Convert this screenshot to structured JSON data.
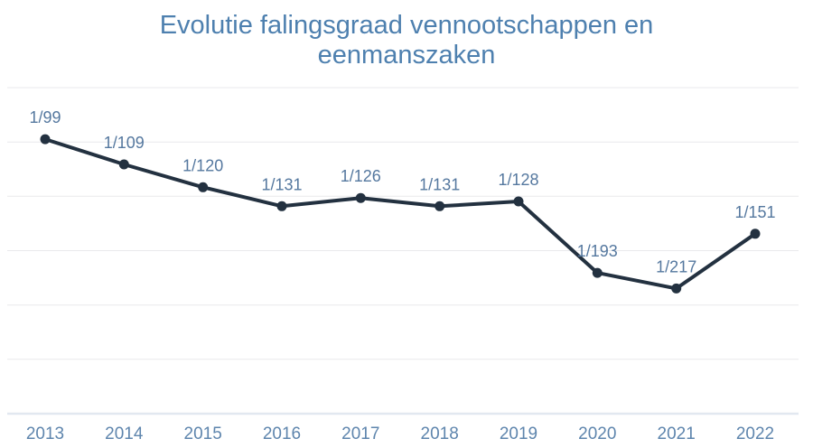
{
  "page": {
    "background": "#ffffff"
  },
  "chart": {
    "title": "Evolutie falingsgraad vennootschappen en eenmanszaken"
  },
  "chart_data": {
    "type": "line",
    "title": "Evolutie falingsgraad vennootschappen en eenmanszaken",
    "xlabel": "",
    "ylabel": "",
    "categories": [
      "2013",
      "2014",
      "2015",
      "2016",
      "2017",
      "2018",
      "2019",
      "2020",
      "2021",
      "2022"
    ],
    "series": [
      {
        "name": "falingsgraad",
        "point_labels": [
          "1/99",
          "1/109",
          "1/120",
          "1/131",
          "1/126",
          "1/131",
          "1/128",
          "1/193",
          "1/217",
          "1/151"
        ],
        "denominators": [
          99,
          109,
          120,
          131,
          126,
          131,
          128,
          193,
          217,
          151
        ],
        "values": [
          0.010101,
          0.009174,
          0.008333,
          0.007634,
          0.007937,
          0.007634,
          0.007813,
          0.005181,
          0.004608,
          0.006623
        ]
      }
    ],
    "ylim": [
      0,
      0.012
    ],
    "gridline_step": 0.002,
    "grid": true,
    "legend": "none",
    "colors": {
      "line": "#233140",
      "marker": "#233140",
      "title": "#4e80af",
      "point_label": "#55789f",
      "axis_label": "#5e85ad",
      "gridline": "#e9e9ec",
      "baseline": "#e2e8f0"
    }
  }
}
